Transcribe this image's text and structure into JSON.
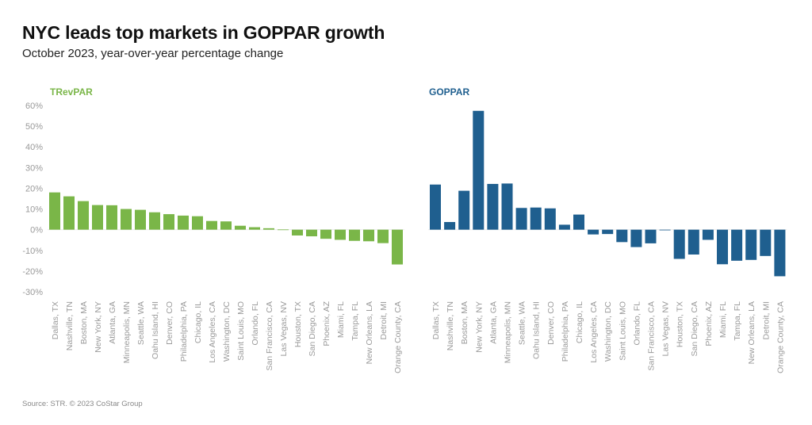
{
  "header": {
    "title": "NYC leads top markets in GOPPAR growth",
    "subtitle": "October 2023, year-over-year percentage change"
  },
  "footer": {
    "source": "Source: STR. © 2023 CoStar Group"
  },
  "chart_data": [
    {
      "type": "bar",
      "title": "TRevPAR",
      "color": "#7ab648",
      "xlabel": "",
      "ylabel": "",
      "ylim": [
        -30,
        60
      ],
      "yticks": [
        "60%",
        "50%",
        "40%",
        "30%",
        "20%",
        "10%",
        "0%",
        "-10%",
        "-20%",
        "-30%"
      ],
      "ytick_values": [
        60,
        50,
        40,
        30,
        20,
        10,
        0,
        -10,
        -20,
        -30
      ],
      "grid": false,
      "categories": [
        "Dallas, TX",
        "Nashville, TN",
        "Boston, MA",
        "New York, NY",
        "Atlanta, GA",
        "Minneapolis, MN",
        "Seattle, WA",
        "Oahu Island, HI",
        "Denver, CO",
        "Philadelphia, PA",
        "Chicago, IL",
        "Los Angeles, CA",
        "Washington, DC",
        "Saint Louis, MO",
        "Orlando, FL",
        "San Francisco, CA",
        "Las Vegas, NV",
        "Houston, TX",
        "San Diego, CA",
        "Phoenix, AZ",
        "Miami, FL",
        "Tampa, FL",
        "New Orleans, LA",
        "Detroit, MI",
        "Orange County, CA"
      ],
      "values": [
        18.0,
        16.1,
        13.8,
        11.9,
        11.8,
        10.0,
        9.6,
        8.4,
        7.5,
        6.8,
        6.5,
        4.2,
        4.0,
        1.9,
        1.2,
        0.7,
        0.1,
        -2.8,
        -3.2,
        -4.4,
        -4.9,
        -5.4,
        -5.6,
        -6.5,
        -16.8
      ]
    },
    {
      "type": "bar",
      "title": "GOPPAR",
      "color": "#1f5f8f",
      "xlabel": "",
      "ylabel": "",
      "ylim": [
        -30,
        60
      ],
      "grid": false,
      "categories": [
        "Dallas, TX",
        "Nashville, TN",
        "Boston, MA",
        "New York, NY",
        "Atlanta, GA",
        "Minneapolis, MN",
        "Seattle, WA",
        "Oahu Island, HI",
        "Denver, CO",
        "Philadelphia, PA",
        "Chicago, IL",
        "Los Angeles, CA",
        "Washington, DC",
        "Saint Louis, MO",
        "Orlando, FL",
        "San Francisco, CA",
        "Las Vegas, NV",
        "Houston, TX",
        "San Diego, CA",
        "Phoenix, AZ",
        "Miami, FL",
        "Tampa, FL",
        "New Orleans, LA",
        "Detroit, MI",
        "Orange County, CA"
      ],
      "values": [
        21.8,
        3.7,
        18.8,
        57.4,
        22.1,
        22.3,
        10.5,
        10.7,
        10.3,
        2.4,
        7.3,
        -2.3,
        -2.1,
        -6.0,
        -8.4,
        -6.6,
        -0.3,
        -14.1,
        -12.0,
        -4.9,
        -16.7,
        -15.0,
        -14.6,
        -12.7,
        -22.5
      ]
    }
  ]
}
